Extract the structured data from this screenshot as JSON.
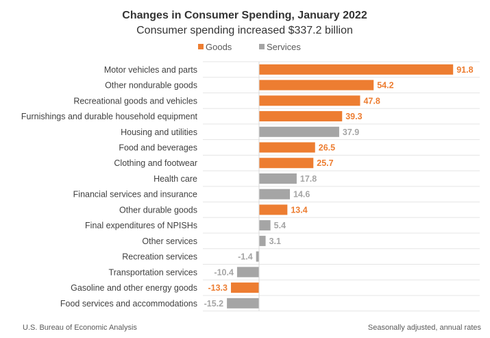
{
  "chart_data": {
    "type": "bar",
    "orientation": "horizontal",
    "title": "Changes in Consumer Spending, January 2022",
    "subtitle": "Consumer spending increased $337.2 billion",
    "legend": {
      "placement": "top",
      "entries": [
        {
          "name": "Goods",
          "color": "#ED7D31"
        },
        {
          "name": "Services",
          "color": "#A5A5A5"
        }
      ]
    },
    "categories": [
      "Motor vehicles and parts",
      "Other nondurable goods",
      "Recreational goods and vehicles",
      "Furnishings and durable household equipment",
      "Housing and utilities",
      "Food and beverages",
      "Clothing and footwear",
      "Health care",
      "Financial services and insurance",
      "Other durable goods",
      "Final expenditures of NPISHs",
      "Other services",
      "Recreation services",
      "Transportation services",
      "Gasoline and other energy goods",
      "Food services and accommodations"
    ],
    "values": [
      91.8,
      54.2,
      47.8,
      39.3,
      37.9,
      26.5,
      25.7,
      17.8,
      14.6,
      13.4,
      5.4,
      3.1,
      -1.4,
      -10.4,
      -13.3,
      -15.2
    ],
    "value_labels": [
      "91.8",
      "54.2",
      "47.8",
      "39.3",
      "37.9",
      "26.5",
      "25.7",
      "17.8",
      "14.6",
      "13.4",
      "5.4",
      "3.1",
      "-1.4",
      "-10.4",
      "-13.3",
      "-15.2"
    ],
    "groups": [
      "Goods",
      "Goods",
      "Goods",
      "Goods",
      "Services",
      "Goods",
      "Goods",
      "Services",
      "Services",
      "Goods",
      "Services",
      "Services",
      "Services",
      "Services",
      "Goods",
      "Services"
    ],
    "units": "billions of dollars",
    "grid": "horizontal row separators",
    "xlim": [
      -26.5,
      93
    ]
  },
  "footer": {
    "source": "U.S. Bureau of Economic Analysis",
    "note": "Seasonally adjusted, annual rates"
  }
}
